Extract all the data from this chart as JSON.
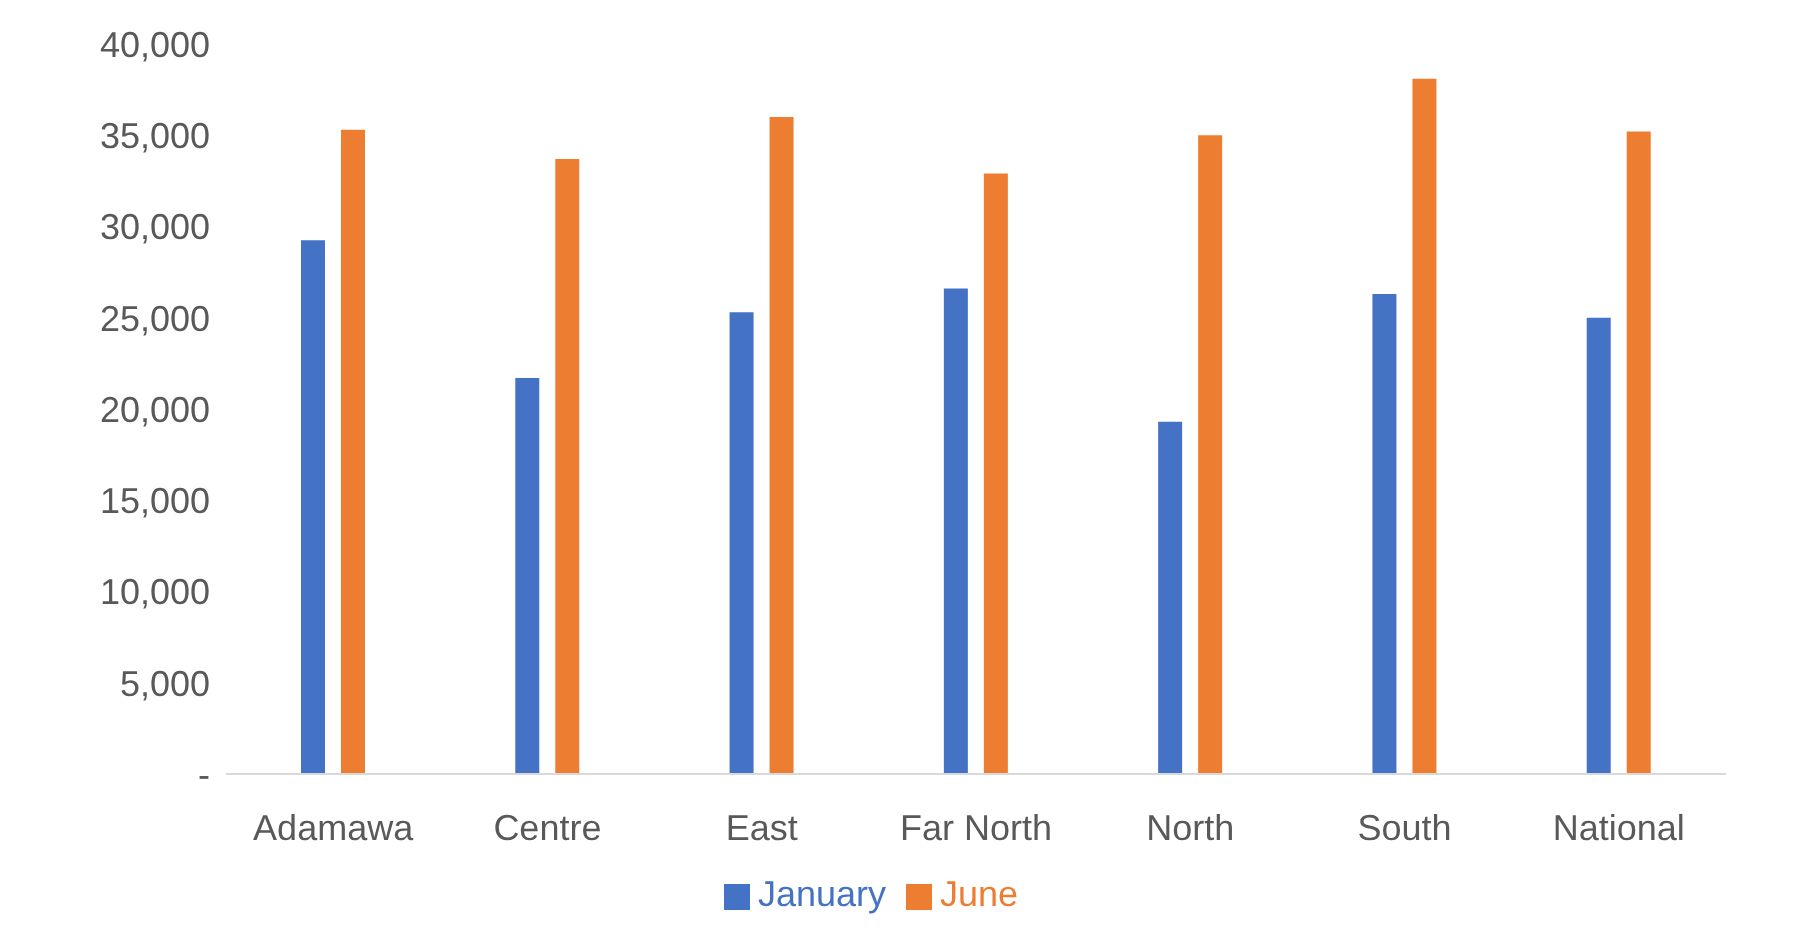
{
  "chart_data": {
    "type": "bar",
    "categories": [
      "Adamawa",
      "Centre",
      "East",
      "Far North",
      "North",
      "South",
      "National"
    ],
    "series": [
      {
        "name": "January",
        "color": "#4472c4",
        "values": [
          29250,
          21700,
          25300,
          26600,
          19300,
          26300,
          25000
        ]
      },
      {
        "name": "June",
        "color": "#ed7d31",
        "values": [
          35300,
          33700,
          36000,
          32900,
          35000,
          38100,
          35200
        ]
      }
    ],
    "ylim": [
      0,
      40000
    ],
    "yticks": [
      {
        "value": 0,
        "label": "-"
      },
      {
        "value": 5000,
        "label": "5,000"
      },
      {
        "value": 10000,
        "label": "10,000"
      },
      {
        "value": 15000,
        "label": "15,000"
      },
      {
        "value": 20000,
        "label": "20,000"
      },
      {
        "value": 25000,
        "label": "25,000"
      },
      {
        "value": 30000,
        "label": "30,000"
      },
      {
        "value": 35000,
        "label": "35,000"
      },
      {
        "value": 40000,
        "label": "40,000"
      }
    ],
    "grid": false,
    "legend": "bottom"
  }
}
